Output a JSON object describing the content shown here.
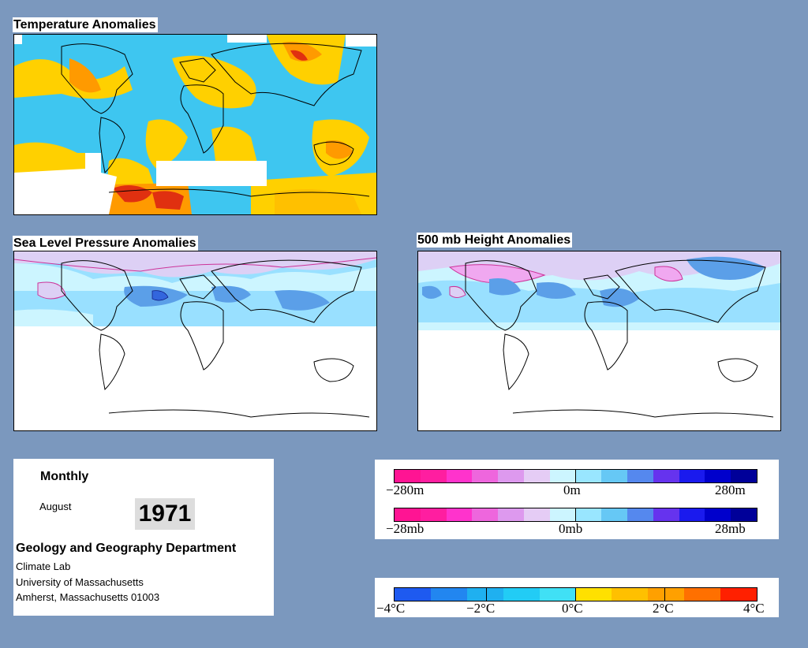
{
  "maps": {
    "temperature": {
      "title": "Temperature Anomalies"
    },
    "slp": {
      "title": "Sea Level Pressure Anomalies"
    },
    "height500": {
      "title": "500 mb Height Anomalies"
    }
  },
  "info": {
    "period": "Monthly",
    "month": "August",
    "year": "1971",
    "department": "Geology and Geography Department",
    "lab": "Climate Lab",
    "university": "University of Massachusetts",
    "address": "Amherst, Massachusetts 01003"
  },
  "legend_height": {
    "min": "−280m",
    "mid": "0m",
    "max": "280m",
    "colors": [
      "#ff1493",
      "#ff1ea0",
      "#ff33cc",
      "#ee66dd",
      "#dd99ee",
      "#e5ccf5",
      "#ccf5ff",
      "#99e6ff",
      "#66c8f5",
      "#5588ee",
      "#6633ee",
      "#1a1aee",
      "#0000cc",
      "#000099"
    ]
  },
  "legend_pressure": {
    "min": "−28mb",
    "mid": "0mb",
    "max": "28mb",
    "colors": [
      "#ff1493",
      "#ff1ea0",
      "#ff33cc",
      "#ee66dd",
      "#dd99ee",
      "#e5ccf5",
      "#ccf5ff",
      "#99e6ff",
      "#66c8f5",
      "#5588ee",
      "#6633ee",
      "#1a1aee",
      "#0000cc",
      "#000099"
    ]
  },
  "legend_temperature": {
    "labels": [
      "−4°C",
      "−2°C",
      "0°C",
      "2°C",
      "4°C"
    ],
    "colors": [
      "#1e5af0",
      "#2286f0",
      "#1fb0f0",
      "#22ccf5",
      "#40e0f5",
      "#ffe000",
      "#ffc000",
      "#ffa000",
      "#ff7000",
      "#ff2000"
    ]
  },
  "palette": {
    "background": "#7b98be",
    "temp_cold": "#3ec6f0",
    "temp_warm": "#ffd000",
    "temp_hot": "#ff9a00",
    "temp_hottest": "#e03010",
    "pressure_band_light": "#ccf5ff",
    "pressure_band_mid": "#99e0ff",
    "pressure_band_blue": "#5b9fe8",
    "pressure_band_lilac": "#ddd0f5"
  }
}
